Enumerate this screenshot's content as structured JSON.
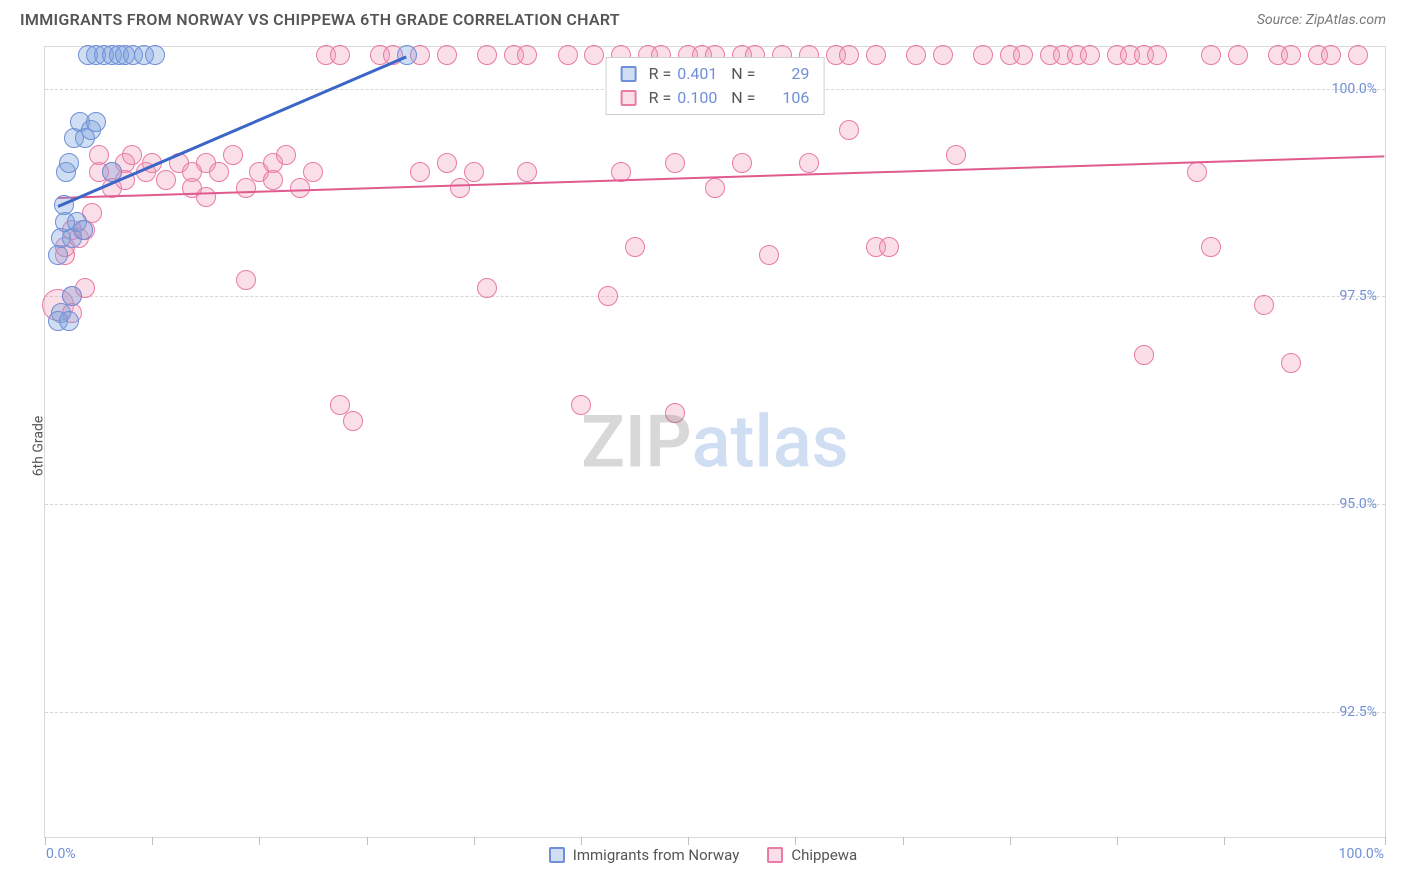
{
  "header": {
    "title": "IMMIGRANTS FROM NORWAY VS CHIPPEWA 6TH GRADE CORRELATION CHART",
    "source_label": "Source: ZipAtlas.com"
  },
  "chart": {
    "type": "scatter",
    "ylabel": "6th Grade",
    "watermark": {
      "part1": "ZIP",
      "part2": "atlas"
    },
    "background_color": "#ffffff",
    "border_color": "#d9d9d9",
    "grid_color": "#d6d6d6",
    "axis_label_color": "#6f8fd8",
    "xlim": [
      0,
      100
    ],
    "ylim": [
      91.0,
      100.5
    ],
    "yticks": [
      {
        "value": 100.0,
        "label": "100.0%"
      },
      {
        "value": 97.5,
        "label": "97.5%"
      },
      {
        "value": 95.0,
        "label": "95.0%"
      },
      {
        "value": 92.5,
        "label": "92.5%"
      }
    ],
    "xtick_positions_pct": [
      0,
      8,
      16,
      24,
      32,
      40,
      48,
      56,
      64,
      72,
      80,
      88,
      100
    ],
    "xtick_labels": {
      "min": "0.0%",
      "max": "100.0%"
    },
    "series": {
      "norway": {
        "label": "Immigrants from Norway",
        "marker_color": "rgba(120,160,220,0.35)",
        "marker_border": "#6f8fd8",
        "marker_radius": 10,
        "R_label": "R =",
        "R_value": "0.401",
        "N_label": "N =",
        "N_value": "29",
        "trend": {
          "x1": 1,
          "y1": 98.6,
          "x2": 27,
          "y2": 100.4,
          "color": "#3a66c7",
          "width": 3
        },
        "points": [
          {
            "x": 1.2,
            "y": 97.3
          },
          {
            "x": 1.0,
            "y": 97.2
          },
          {
            "x": 1.0,
            "y": 98.0
          },
          {
            "x": 1.2,
            "y": 98.2
          },
          {
            "x": 1.5,
            "y": 98.4
          },
          {
            "x": 1.4,
            "y": 98.6
          },
          {
            "x": 1.6,
            "y": 99.0
          },
          {
            "x": 1.8,
            "y": 99.1
          },
          {
            "x": 2.2,
            "y": 99.4
          },
          {
            "x": 2.6,
            "y": 99.6
          },
          {
            "x": 2.0,
            "y": 98.2
          },
          {
            "x": 2.4,
            "y": 98.4
          },
          {
            "x": 2.0,
            "y": 97.5
          },
          {
            "x": 2.8,
            "y": 98.3
          },
          {
            "x": 3.2,
            "y": 100.4
          },
          {
            "x": 3.8,
            "y": 100.4
          },
          {
            "x": 4.4,
            "y": 100.4
          },
          {
            "x": 5.0,
            "y": 100.4
          },
          {
            "x": 5.5,
            "y": 100.4
          },
          {
            "x": 6.0,
            "y": 100.4
          },
          {
            "x": 6.6,
            "y": 100.4
          },
          {
            "x": 7.4,
            "y": 100.4
          },
          {
            "x": 8.2,
            "y": 100.4
          },
          {
            "x": 3.0,
            "y": 99.4
          },
          {
            "x": 3.4,
            "y": 99.5
          },
          {
            "x": 3.8,
            "y": 99.6
          },
          {
            "x": 5.0,
            "y": 99.0
          },
          {
            "x": 1.8,
            "y": 97.2
          },
          {
            "x": 27.0,
            "y": 100.4
          }
        ]
      },
      "chippewa": {
        "label": "Chippewa",
        "marker_color": "rgba(240,150,180,0.30)",
        "marker_border": "#e97ba5",
        "marker_radius": 10,
        "R_label": "R =",
        "R_value": "0.100",
        "N_label": "N =",
        "N_value": "106",
        "trend": {
          "x1": 1,
          "y1": 98.7,
          "x2": 100,
          "y2": 99.2,
          "color": "#e05a8d",
          "width": 2
        },
        "points": [
          {
            "x": 1,
            "y": 97.4,
            "r": 16
          },
          {
            "x": 2,
            "y": 97.5
          },
          {
            "x": 2,
            "y": 97.3
          },
          {
            "x": 3,
            "y": 97.6
          },
          {
            "x": 1.5,
            "y": 98.0
          },
          {
            "x": 1.5,
            "y": 98.1
          },
          {
            "x": 2.5,
            "y": 98.2
          },
          {
            "x": 2.0,
            "y": 98.3
          },
          {
            "x": 3.0,
            "y": 98.3
          },
          {
            "x": 3.5,
            "y": 98.5
          },
          {
            "x": 4.0,
            "y": 99.0
          },
          {
            "x": 4.0,
            "y": 99.2
          },
          {
            "x": 5.0,
            "y": 99.0
          },
          {
            "x": 5.0,
            "y": 98.8
          },
          {
            "x": 6.0,
            "y": 99.1
          },
          {
            "x": 6.0,
            "y": 98.9
          },
          {
            "x": 6.5,
            "y": 99.2
          },
          {
            "x": 7.5,
            "y": 99.0
          },
          {
            "x": 8.0,
            "y": 99.1
          },
          {
            "x": 9.0,
            "y": 98.9
          },
          {
            "x": 10,
            "y": 99.1
          },
          {
            "x": 11,
            "y": 99.0
          },
          {
            "x": 11,
            "y": 98.8
          },
          {
            "x": 12,
            "y": 99.1
          },
          {
            "x": 12,
            "y": 98.7
          },
          {
            "x": 13,
            "y": 99.0
          },
          {
            "x": 14,
            "y": 99.2
          },
          {
            "x": 15,
            "y": 98.8
          },
          {
            "x": 15,
            "y": 97.7
          },
          {
            "x": 16,
            "y": 99.0
          },
          {
            "x": 17,
            "y": 99.1
          },
          {
            "x": 17,
            "y": 98.9
          },
          {
            "x": 18,
            "y": 99.2
          },
          {
            "x": 19,
            "y": 98.8
          },
          {
            "x": 20,
            "y": 99.0
          },
          {
            "x": 21,
            "y": 100.4
          },
          {
            "x": 22,
            "y": 100.4
          },
          {
            "x": 22,
            "y": 96.2
          },
          {
            "x": 23,
            "y": 96.0
          },
          {
            "x": 25,
            "y": 100.4
          },
          {
            "x": 26,
            "y": 100.4
          },
          {
            "x": 28,
            "y": 99.0
          },
          {
            "x": 28,
            "y": 100.4
          },
          {
            "x": 30,
            "y": 100.4
          },
          {
            "x": 30,
            "y": 99.1
          },
          {
            "x": 31,
            "y": 98.8
          },
          {
            "x": 32,
            "y": 99.0
          },
          {
            "x": 33,
            "y": 100.4
          },
          {
            "x": 33,
            "y": 97.6
          },
          {
            "x": 35,
            "y": 100.4
          },
          {
            "x": 36,
            "y": 99.0
          },
          {
            "x": 36,
            "y": 100.4
          },
          {
            "x": 39,
            "y": 100.4
          },
          {
            "x": 40,
            "y": 96.2
          },
          {
            "x": 41,
            "y": 100.4
          },
          {
            "x": 42,
            "y": 97.5
          },
          {
            "x": 43,
            "y": 100.4
          },
          {
            "x": 43,
            "y": 99.0
          },
          {
            "x": 44,
            "y": 98.1
          },
          {
            "x": 45,
            "y": 100.4
          },
          {
            "x": 46,
            "y": 100.4
          },
          {
            "x": 47,
            "y": 96.1
          },
          {
            "x": 47,
            "y": 99.1
          },
          {
            "x": 48,
            "y": 100.4
          },
          {
            "x": 49,
            "y": 100.4
          },
          {
            "x": 50,
            "y": 98.8
          },
          {
            "x": 50,
            "y": 100.4
          },
          {
            "x": 52,
            "y": 100.4
          },
          {
            "x": 52,
            "y": 99.1
          },
          {
            "x": 53,
            "y": 100.4
          },
          {
            "x": 54,
            "y": 98.0
          },
          {
            "x": 55,
            "y": 100.4
          },
          {
            "x": 57,
            "y": 100.4
          },
          {
            "x": 57,
            "y": 99.1
          },
          {
            "x": 59,
            "y": 100.4
          },
          {
            "x": 60,
            "y": 99.5
          },
          {
            "x": 60,
            "y": 100.4
          },
          {
            "x": 62,
            "y": 98.1
          },
          {
            "x": 62,
            "y": 100.4
          },
          {
            "x": 63,
            "y": 98.1
          },
          {
            "x": 65,
            "y": 100.4
          },
          {
            "x": 67,
            "y": 100.4
          },
          {
            "x": 68,
            "y": 99.2
          },
          {
            "x": 70,
            "y": 100.4
          },
          {
            "x": 72,
            "y": 100.4
          },
          {
            "x": 73,
            "y": 100.4
          },
          {
            "x": 75,
            "y": 100.4
          },
          {
            "x": 76,
            "y": 100.4
          },
          {
            "x": 77,
            "y": 100.4
          },
          {
            "x": 78,
            "y": 100.4
          },
          {
            "x": 80,
            "y": 100.4
          },
          {
            "x": 81,
            "y": 100.4
          },
          {
            "x": 82,
            "y": 100.4
          },
          {
            "x": 82,
            "y": 96.8
          },
          {
            "x": 83,
            "y": 100.4
          },
          {
            "x": 86,
            "y": 99.0
          },
          {
            "x": 87,
            "y": 100.4
          },
          {
            "x": 87,
            "y": 98.1
          },
          {
            "x": 89,
            "y": 100.4
          },
          {
            "x": 91,
            "y": 97.4
          },
          {
            "x": 92,
            "y": 100.4
          },
          {
            "x": 93,
            "y": 100.4
          },
          {
            "x": 93,
            "y": 96.7
          },
          {
            "x": 95,
            "y": 100.4
          },
          {
            "x": 96,
            "y": 100.4
          },
          {
            "x": 98,
            "y": 100.4
          }
        ]
      }
    },
    "bottom_legend": [
      {
        "key": "norway"
      },
      {
        "key": "chippewa"
      }
    ]
  }
}
